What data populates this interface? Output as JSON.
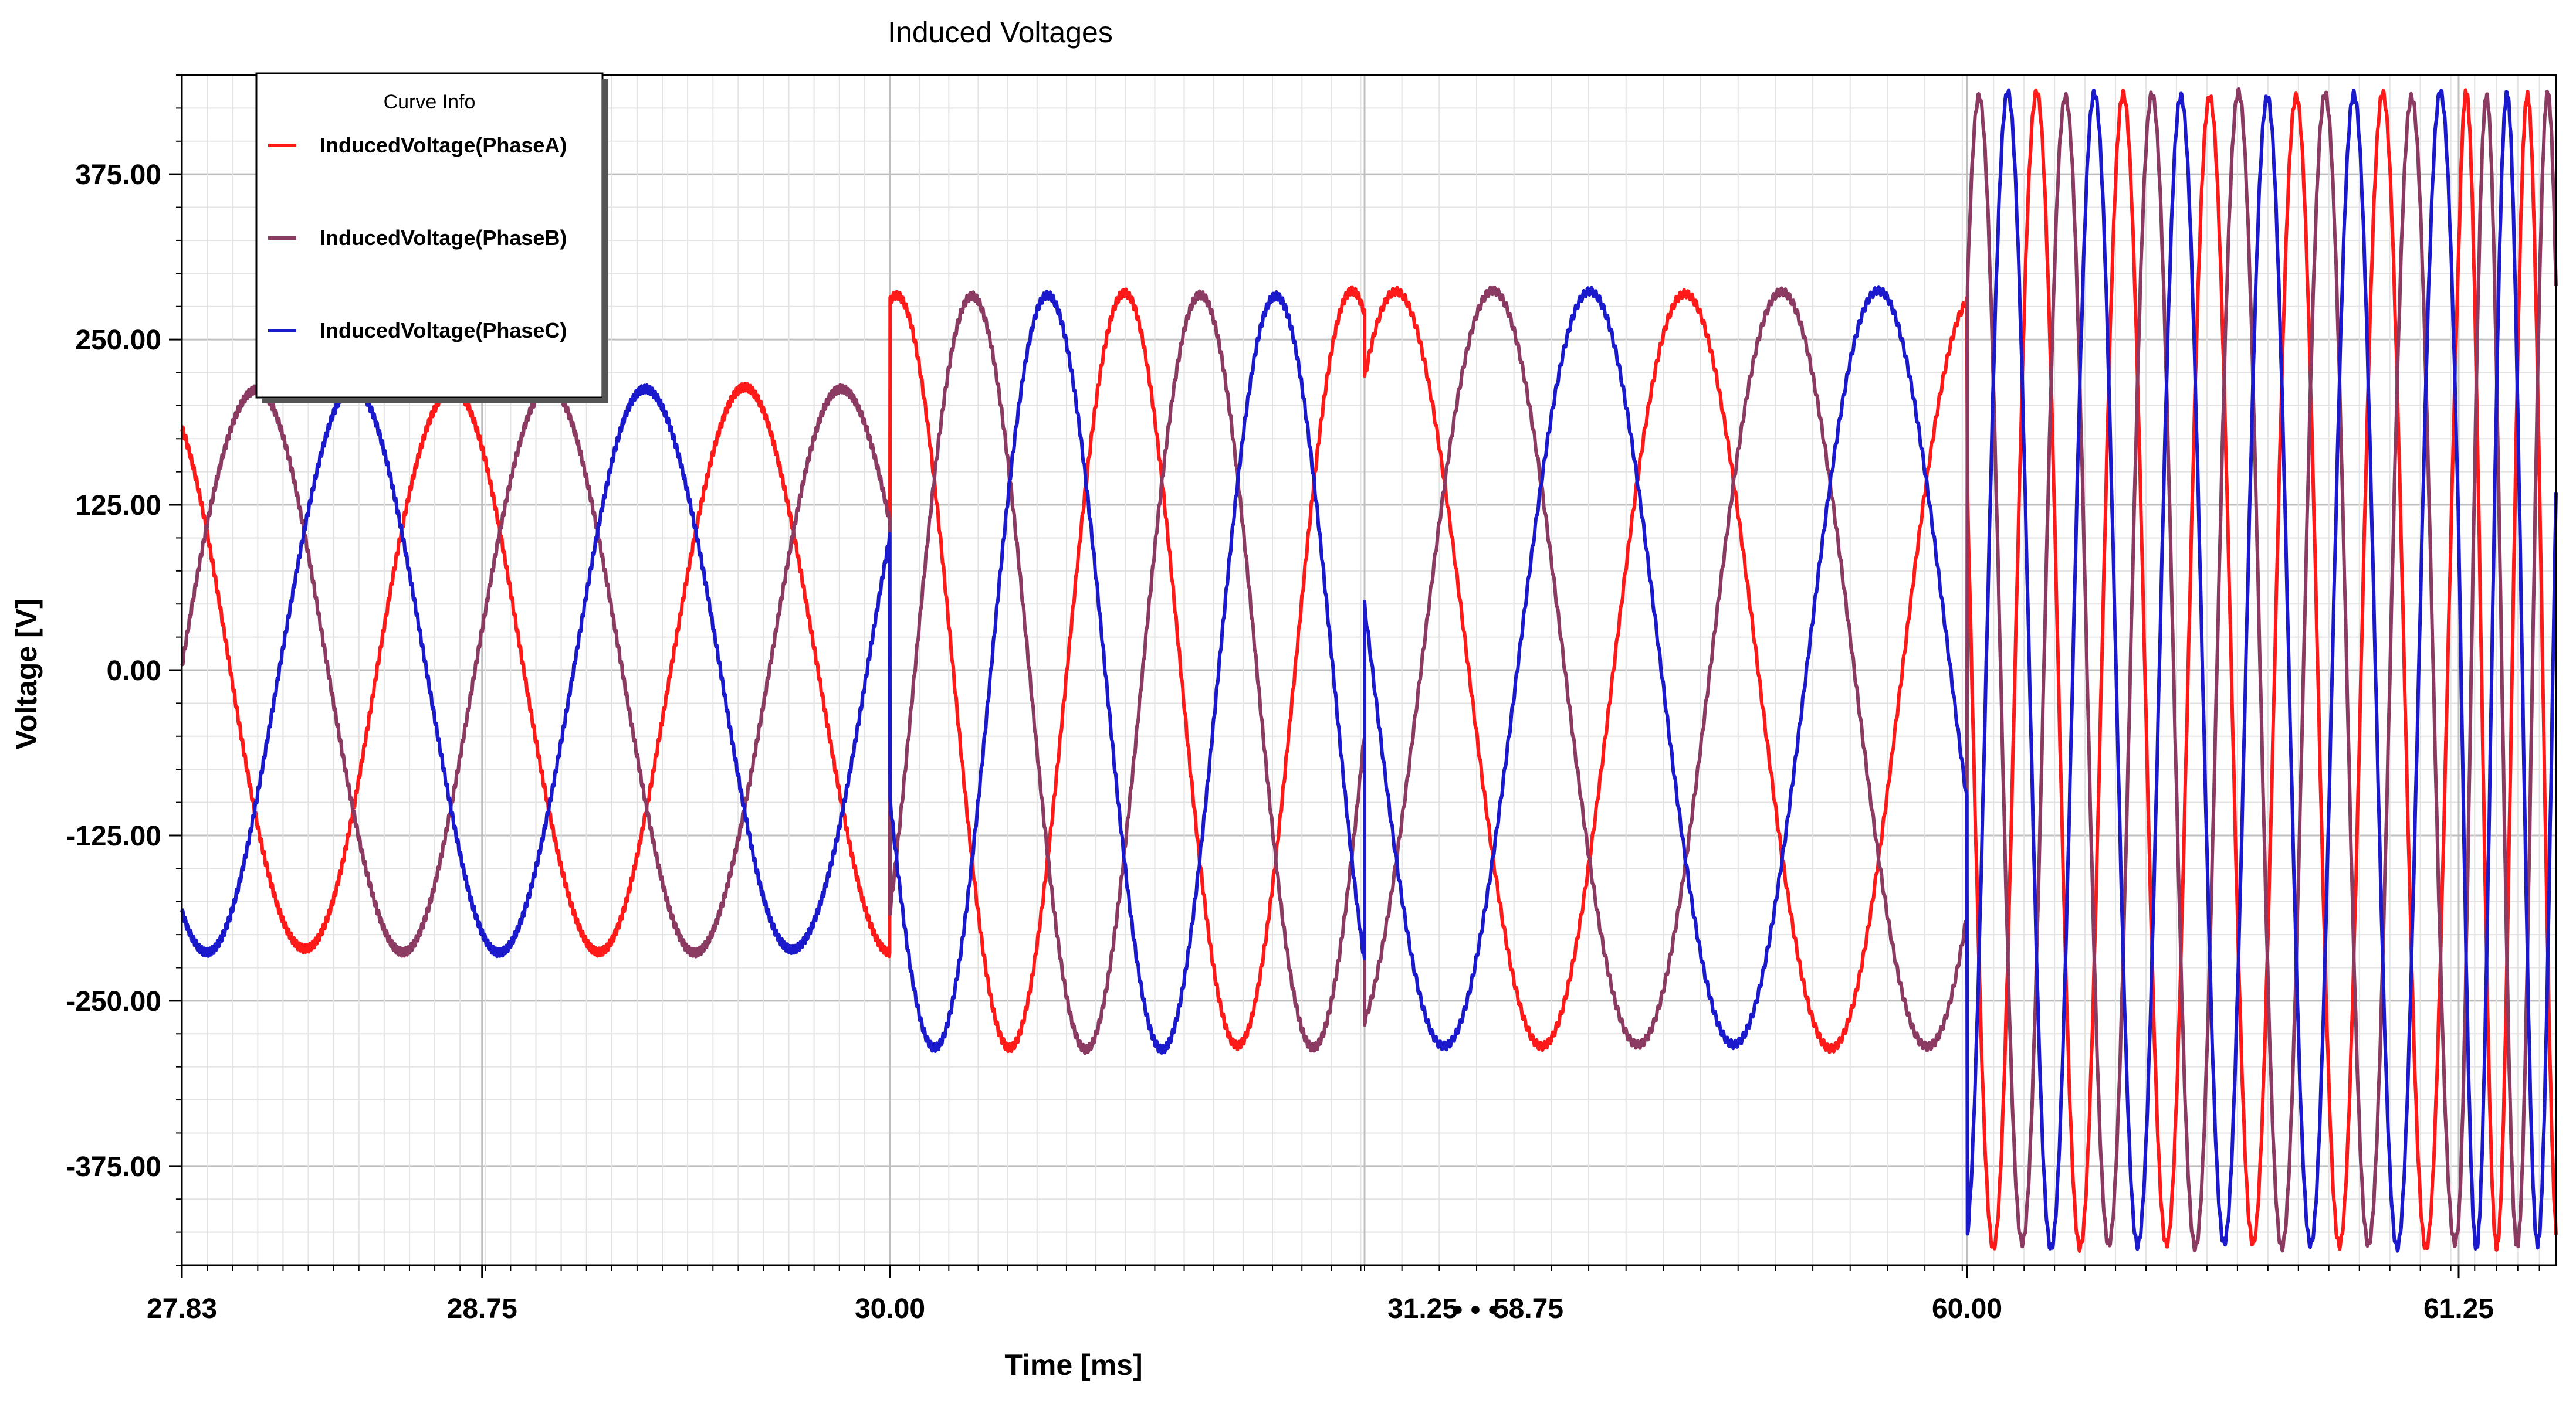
{
  "chart_data": {
    "type": "line",
    "title": "Induced Voltages",
    "xlabel": "Time [ms]",
    "ylabel": "Voltage [V]",
    "x_axis": {
      "broken": true,
      "segments": [
        {
          "range": [
            27.83,
            31.25
          ]
        },
        {
          "range": [
            58.75,
            61.6
          ]
        }
      ],
      "break_marker": "• • •",
      "tick_labels": [
        "27.83",
        "28.75",
        "30.00",
        "31.25",
        "58.75",
        "60.00",
        "61.25"
      ]
    },
    "y_axis": {
      "range": [
        -450,
        450
      ],
      "ticks": [
        375,
        250,
        125,
        0,
        -125,
        -250,
        -375
      ],
      "tick_labels": [
        "375.00",
        "250.00",
        "125.00",
        "0.00",
        "-125.00",
        "-250.00",
        "-375.00"
      ]
    },
    "grid": true,
    "legend": {
      "title": "Curve Info",
      "placement": "top-left"
    },
    "series": [
      {
        "name": "InducedVoltage(PhaseA)",
        "color": "#ff1a1a",
        "phase_deg": 0
      },
      {
        "name": "InducedVoltage(PhaseB)",
        "color": "#8b3a62",
        "phase_deg": -120
      },
      {
        "name": "InducedVoltage(PhaseC)",
        "color": "#1a1acc",
        "phase_deg": 120
      }
    ],
    "regimes": [
      {
        "x_start": 27.83,
        "x_end": 30.0,
        "amplitude": 212,
        "period_ms": 0.9
      },
      {
        "x_start": 30.0,
        "x_end": 60.0,
        "amplitude": 285,
        "period_ms": 0.6
      },
      {
        "x_start": 60.0,
        "x_end": 61.6,
        "amplitude": 435,
        "period_ms": 0.22
      }
    ]
  }
}
